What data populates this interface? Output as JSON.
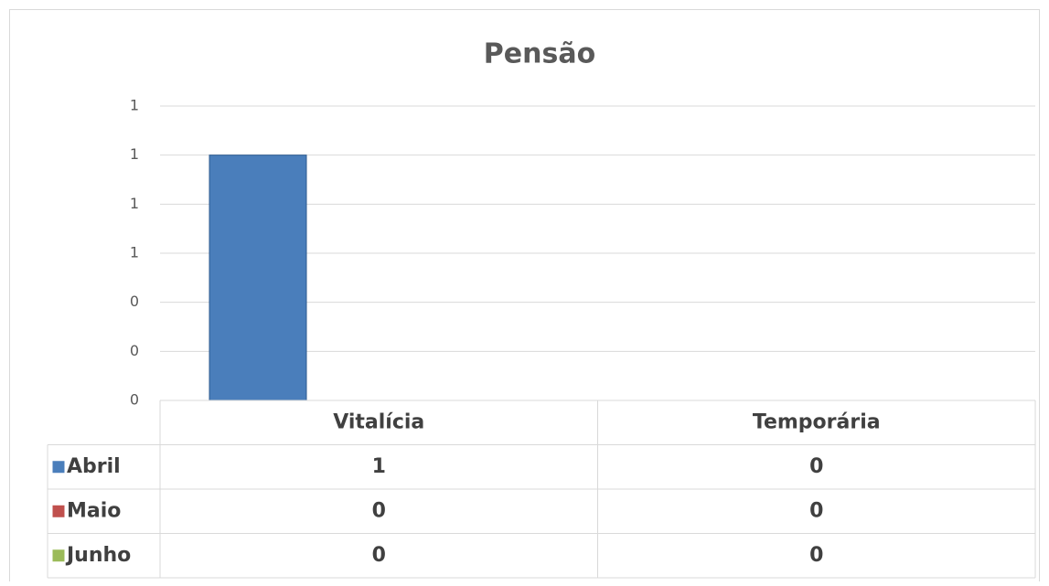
{
  "chart_data": {
    "type": "bar",
    "title": "Pensão",
    "categories": [
      "Vitalícia",
      "Temporária"
    ],
    "series": [
      {
        "name": "Abril",
        "color": "#4a7ebb",
        "values": [
          1,
          0
        ]
      },
      {
        "name": "Maio",
        "color": "#c0504d",
        "values": [
          0,
          0
        ]
      },
      {
        "name": "Junho",
        "color": "#9bbb59",
        "values": [
          0,
          0
        ]
      }
    ],
    "ylim": [
      0,
      1.2
    ],
    "yticks": [
      0,
      {
        "value": 0.2,
        "label": "0"
      },
      {
        "value": 0.4,
        "label": "0"
      },
      {
        "value": 0.6,
        "label": "1"
      },
      {
        "value": 0.8,
        "label": "1"
      },
      1,
      {
        "value": 1.2,
        "label": "1"
      }
    ],
    "grid": true,
    "data_table": true
  }
}
